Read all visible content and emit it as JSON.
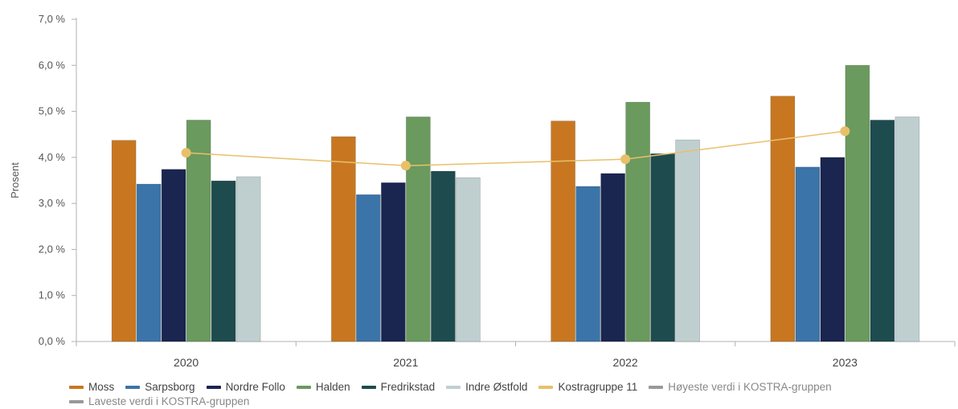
{
  "chart_data": {
    "type": "bar",
    "ylabel": "Prosent",
    "ylim": [
      0,
      7
    ],
    "yticks": [
      "0,0 %",
      "1,0 %",
      "2,0 %",
      "3,0 %",
      "4,0 %",
      "5,0 %",
      "6,0 %",
      "7,0 %"
    ],
    "categories": [
      "2020",
      "2021",
      "2022",
      "2023"
    ],
    "series": [
      {
        "name": "Moss",
        "color": "#c87720",
        "values": [
          4.37,
          4.45,
          4.79,
          5.33
        ]
      },
      {
        "name": "Sarpsborg",
        "color": "#3b74a8",
        "values": [
          3.42,
          3.19,
          3.37,
          3.79
        ]
      },
      {
        "name": "Nordre Follo",
        "color": "#1a2550",
        "values": [
          3.74,
          3.45,
          3.65,
          4.0
        ]
      },
      {
        "name": "Halden",
        "color": "#6a9a5e",
        "values": [
          4.81,
          4.88,
          5.2,
          6.0
        ]
      },
      {
        "name": "Fredrikstad",
        "color": "#1e4b4e",
        "values": [
          3.49,
          3.7,
          4.08,
          4.81
        ]
      },
      {
        "name": "Indre Østfold",
        "color": "#bfcfd0",
        "values": [
          3.58,
          3.56,
          4.38,
          4.88
        ]
      }
    ],
    "line_series": {
      "name": "Kostragruppe 11",
      "color": "#e8c06a",
      "values": [
        4.1,
        3.82,
        3.96,
        4.57
      ]
    },
    "extra_legend": [
      {
        "name": "Høyeste verdi i KOSTRA-gruppen",
        "color": "#999999"
      },
      {
        "name": "Laveste verdi i KOSTRA-gruppen",
        "color": "#999999"
      }
    ],
    "grid": false,
    "legend_position": "bottom"
  }
}
